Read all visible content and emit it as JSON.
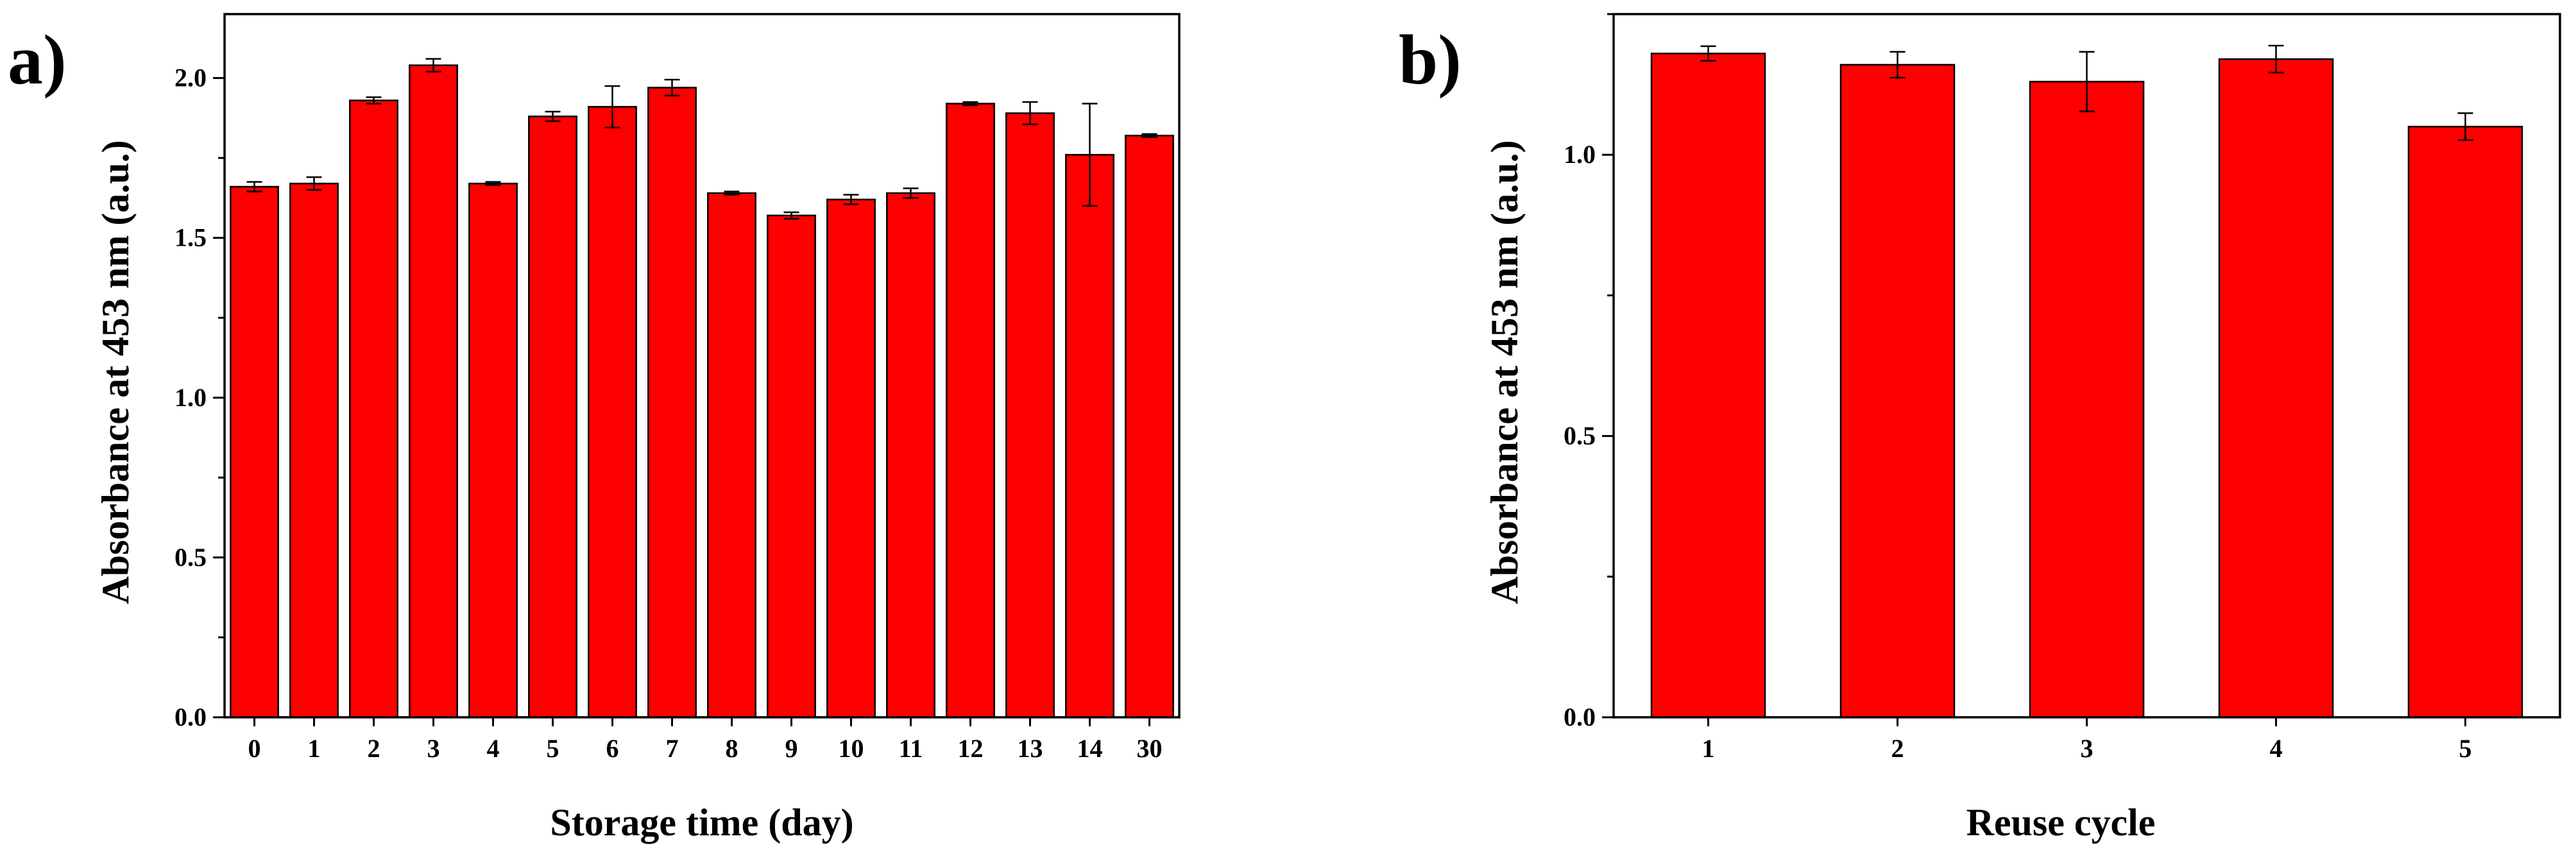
{
  "colors": {
    "bar": "#ff0000",
    "axis": "#000000",
    "background": "#ffffff"
  },
  "chart_data": [
    {
      "type": "bar",
      "panel_label": "a)",
      "title": "",
      "xlabel": "Storage time (day)",
      "ylabel": "Absorbance at 453 nm (a.u.)",
      "ylim": [
        0,
        2.2
      ],
      "yticks": [
        0.0,
        0.5,
        1.0,
        1.5,
        2.0
      ],
      "ytick_labels": [
        "0.0",
        "0.5",
        "1.0",
        "1.5",
        "2.0"
      ],
      "categories": [
        "0",
        "1",
        "2",
        "3",
        "4",
        "5",
        "6",
        "7",
        "8",
        "9",
        "10",
        "11",
        "12",
        "13",
        "14",
        "30"
      ],
      "values": [
        1.66,
        1.67,
        1.93,
        2.04,
        1.67,
        1.88,
        1.91,
        1.97,
        1.64,
        1.57,
        1.62,
        1.64,
        1.92,
        1.89,
        1.76,
        1.82
      ],
      "errors": [
        0.015,
        0.02,
        0.01,
        0.02,
        0.005,
        0.015,
        0.065,
        0.025,
        0.005,
        0.01,
        0.015,
        0.015,
        0.005,
        0.035,
        0.16,
        0.005
      ],
      "grid": false
    },
    {
      "type": "bar",
      "panel_label": "b)",
      "title": "",
      "xlabel": "Reuse cycle",
      "ylabel": "Absorbance at 453 nm (a.u.)",
      "ylim": [
        0,
        1.25
      ],
      "yticks": [
        0.0,
        0.5,
        1.0
      ],
      "ytick_labels": [
        "0.0",
        "0.5",
        "1.0"
      ],
      "categories": [
        "1",
        "2",
        "3",
        "4",
        "5"
      ],
      "values": [
        1.18,
        1.16,
        1.13,
        1.17,
        1.05
      ],
      "errors": [
        0.013,
        0.023,
        0.053,
        0.024,
        0.024
      ],
      "grid": false
    }
  ]
}
